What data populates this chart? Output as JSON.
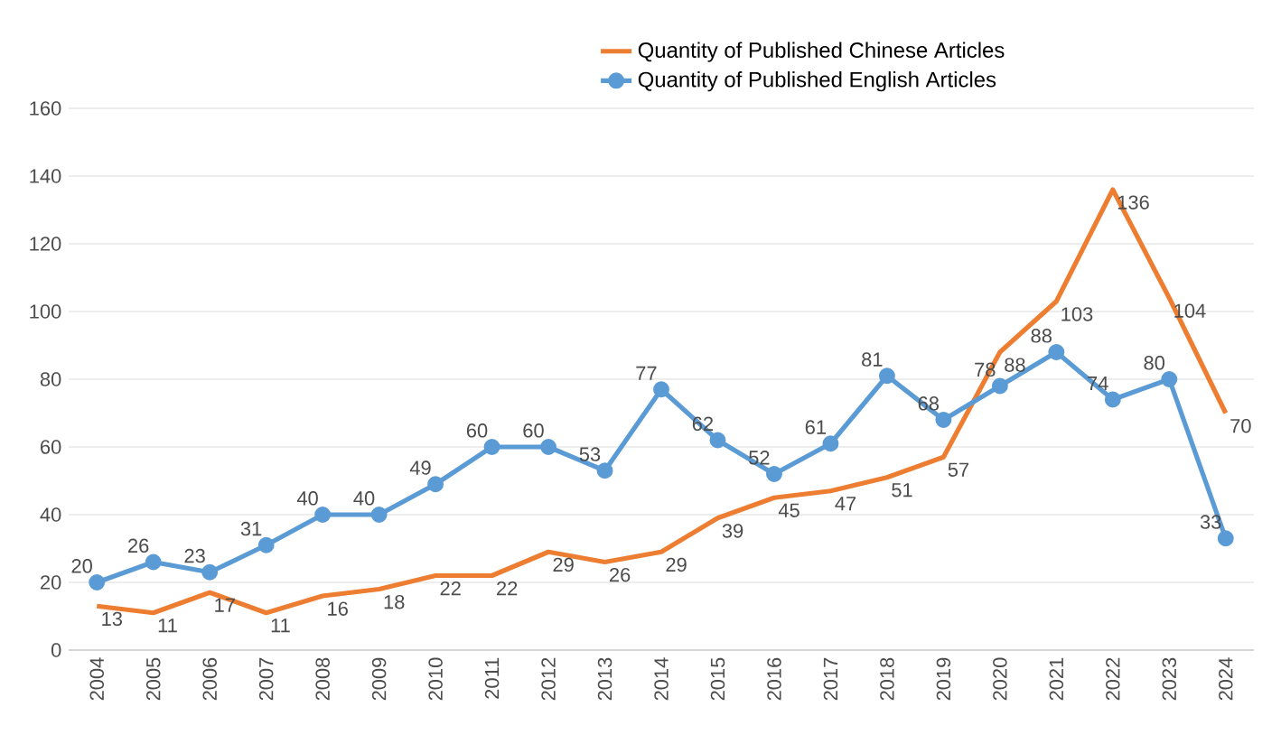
{
  "chart_data": {
    "type": "line",
    "categories": [
      "2004",
      "2005",
      "2006",
      "2007",
      "2008",
      "2009",
      "2010",
      "2011",
      "2012",
      "2013",
      "2014",
      "2015",
      "2016",
      "2017",
      "2018",
      "2019",
      "2020",
      "2021",
      "2022",
      "2023",
      "2024"
    ],
    "series": [
      {
        "name": "Quantity of Published Chinese Articles",
        "color": "#ed7d31",
        "marker": "none",
        "values": [
          13,
          11,
          17,
          11,
          16,
          18,
          22,
          22,
          29,
          26,
          29,
          39,
          45,
          47,
          51,
          57,
          88,
          103,
          136,
          104,
          70
        ]
      },
      {
        "name": "Quantity of Published English Articles",
        "color": "#5b9bd5",
        "marker": "circle",
        "values": [
          20,
          26,
          23,
          31,
          40,
          40,
          49,
          60,
          60,
          53,
          77,
          62,
          52,
          61,
          81,
          68,
          78,
          88,
          74,
          80,
          33
        ]
      }
    ],
    "ylim": [
      0,
      160
    ],
    "yticks": [
      0,
      20,
      40,
      60,
      80,
      100,
      120,
      140,
      160
    ],
    "grid": "y",
    "legend": "top",
    "data_labels": true
  }
}
